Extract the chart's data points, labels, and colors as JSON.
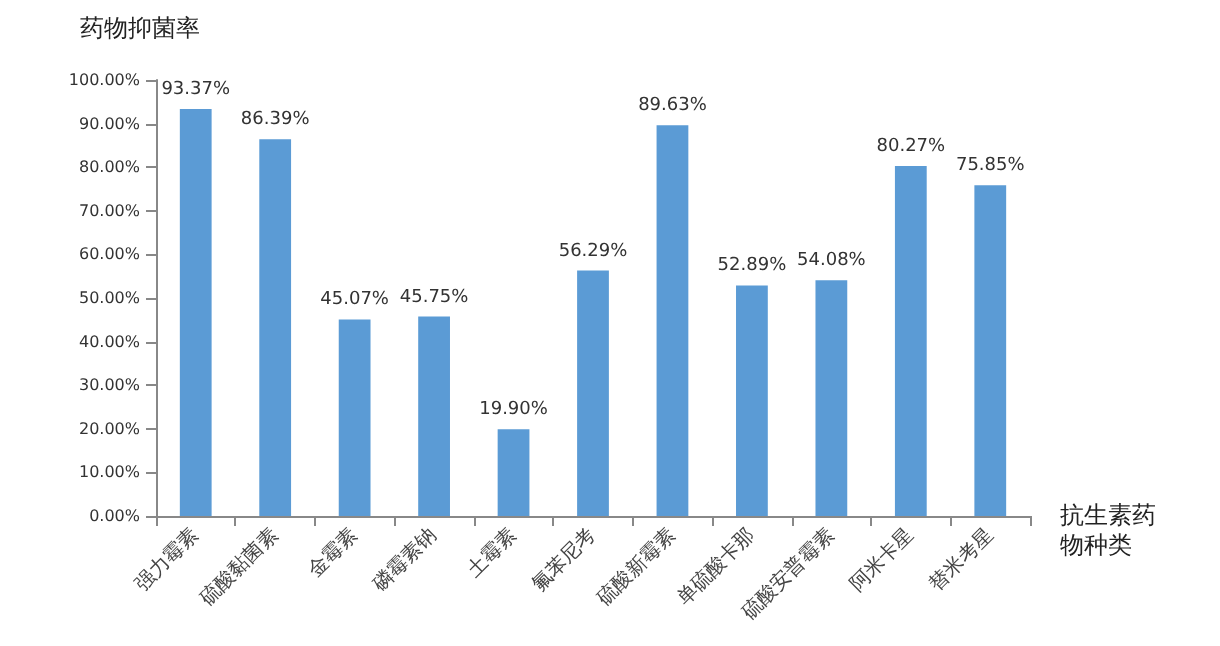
{
  "chart_data": {
    "type": "bar",
    "ylabel": "药物抑菌率",
    "xlabel": "抗生素药物种类",
    "categories": [
      "强力霉素",
      "硫酸黏菌素",
      "金霉素",
      "磷霉素钠",
      "土霉素",
      "氟苯尼考",
      "硫酸新霉素",
      "单硫酸卡那",
      "硫酸安普霉素",
      "阿米卡星",
      "替米考星"
    ],
    "values": [
      93.37,
      86.39,
      45.07,
      45.75,
      19.9,
      56.29,
      89.63,
      52.89,
      54.08,
      80.27,
      75.85
    ],
    "value_labels": [
      "93.37%",
      "86.39%",
      "45.07%",
      "45.75%",
      "19.90%",
      "56.29%",
      "89.63%",
      "52.89%",
      "54.08%",
      "80.27%",
      "75.85%"
    ],
    "color": "#5b9bd5",
    "ylim": [
      0,
      100
    ],
    "yticks": [
      {
        "value": 0,
        "label": "0.00%"
      },
      {
        "value": 10,
        "label": "10.00%"
      },
      {
        "value": 20,
        "label": "20.00%"
      },
      {
        "value": 30,
        "label": "30.00%"
      },
      {
        "value": 40,
        "label": "40.00%"
      },
      {
        "value": 50,
        "label": "50.00%"
      },
      {
        "value": 60,
        "label": "60.00%"
      },
      {
        "value": 70,
        "label": "70.00%"
      },
      {
        "value": 80,
        "label": "80.00%"
      },
      {
        "value": 90,
        "label": "90.00%"
      },
      {
        "value": 100,
        "label": "100.00%"
      }
    ],
    "grid": false
  }
}
